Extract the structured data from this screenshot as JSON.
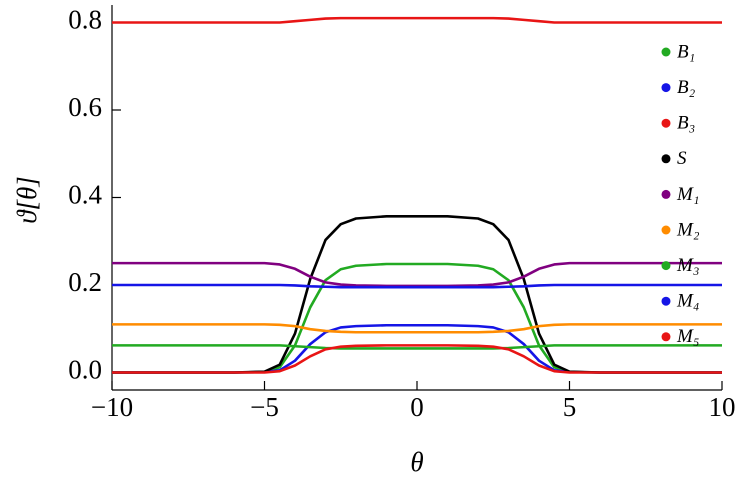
{
  "chart_data": {
    "type": "line",
    "x_label": "θ",
    "y_label": "ϑ[θ]",
    "x": [
      -10,
      -6,
      -5,
      -4.5,
      -4,
      -3.5,
      -3,
      -2.5,
      -2,
      -1,
      0,
      1,
      2,
      2.5,
      3,
      3.5,
      4,
      4.5,
      5,
      6,
      10
    ],
    "xlim": [
      -10,
      10
    ],
    "xticks": [
      {
        "value": -10,
        "label": "−10"
      },
      {
        "value": -5,
        "label": "−5"
      },
      0,
      5,
      10
    ],
    "ylim": [
      -0.04,
      0.84
    ],
    "yticks": [
      {
        "value": 0,
        "label": "0.0"
      },
      0.2,
      0.4,
      0.6,
      0.8
    ],
    "series": [
      {
        "name": "B₁",
        "color": "#22aa22",
        "values": [
          0,
          0,
          0.001,
          0.012,
          0.062,
          0.149,
          0.211,
          0.236,
          0.244,
          0.248,
          0.248,
          0.248,
          0.244,
          0.236,
          0.211,
          0.149,
          0.062,
          0.012,
          0.001,
          0,
          0
        ]
      },
      {
        "name": "B₂",
        "color": "#1515e6",
        "values": [
          0,
          0,
          0.001,
          0.005,
          0.027,
          0.065,
          0.092,
          0.103,
          0.106,
          0.108,
          0.108,
          0.108,
          0.106,
          0.103,
          0.092,
          0.065,
          0.027,
          0.005,
          0.001,
          0,
          0
        ]
      },
      {
        "name": "B₃",
        "color": "#e81515",
        "values": [
          0.8,
          0.8,
          0.8,
          0.8,
          0.803,
          0.806,
          0.809,
          0.81,
          0.81,
          0.81,
          0.81,
          0.81,
          0.81,
          0.81,
          0.809,
          0.806,
          0.803,
          0.8,
          0.8,
          0.8,
          0.8
        ]
      },
      {
        "name": "S",
        "color": "#000000",
        "values": [
          0,
          0,
          0.002,
          0.018,
          0.089,
          0.214,
          0.303,
          0.339,
          0.352,
          0.357,
          0.357,
          0.357,
          0.352,
          0.339,
          0.303,
          0.214,
          0.089,
          0.018,
          0.002,
          0,
          0
        ]
      },
      {
        "name": "M₁",
        "color": "#800080",
        "values": [
          0.25,
          0.25,
          0.25,
          0.247,
          0.237,
          0.219,
          0.206,
          0.201,
          0.199,
          0.198,
          0.198,
          0.198,
          0.199,
          0.201,
          0.206,
          0.219,
          0.237,
          0.247,
          0.25,
          0.25,
          0.25
        ]
      },
      {
        "name": "M₂",
        "color": "#ff8c00",
        "values": [
          0.11,
          0.11,
          0.11,
          0.109,
          0.106,
          0.099,
          0.095,
          0.093,
          0.092,
          0.092,
          0.092,
          0.092,
          0.092,
          0.093,
          0.095,
          0.099,
          0.106,
          0.109,
          0.11,
          0.11,
          0.11
        ]
      },
      {
        "name": "M₃",
        "color": "#22aa22",
        "values": [
          0.062,
          0.062,
          0.062,
          0.062,
          0.06,
          0.058,
          0.056,
          0.055,
          0.055,
          0.055,
          0.055,
          0.055,
          0.055,
          0.055,
          0.056,
          0.058,
          0.06,
          0.062,
          0.062,
          0.062,
          0.062
        ]
      },
      {
        "name": "M₄",
        "color": "#1515e6",
        "values": [
          0.2,
          0.2,
          0.2,
          0.2,
          0.199,
          0.197,
          0.196,
          0.195,
          0.195,
          0.195,
          0.195,
          0.195,
          0.195,
          0.195,
          0.196,
          0.197,
          0.199,
          0.2,
          0.2,
          0.2,
          0.2
        ]
      },
      {
        "name": "M₅",
        "color": "#e81515",
        "values": [
          0,
          0,
          0,
          0.003,
          0.016,
          0.037,
          0.053,
          0.059,
          0.061,
          0.062,
          0.062,
          0.062,
          0.061,
          0.059,
          0.053,
          0.037,
          0.016,
          0.003,
          0,
          0,
          0
        ]
      }
    ],
    "legend": "right"
  }
}
